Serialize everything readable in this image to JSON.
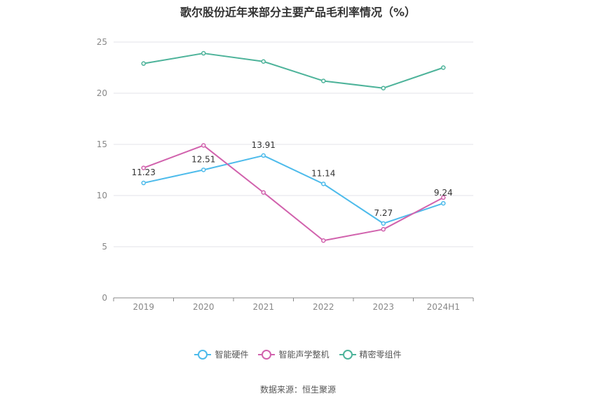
{
  "title": "歌尔股份近年来部分主要产品毛利率情况（%）",
  "source": "数据来源：恒生聚源",
  "chart_data": {
    "type": "line",
    "categories": [
      "2019",
      "2020",
      "2021",
      "2022",
      "2023",
      "2024H1"
    ],
    "ylim": [
      0,
      25
    ],
    "yticks": [
      0,
      5,
      10,
      15,
      20,
      25
    ],
    "grid": true,
    "legend_position": "bottom",
    "series": [
      {
        "name": "智能硬件",
        "color": "#4dbbeb",
        "values": [
          11.23,
          12.51,
          13.91,
          11.14,
          7.27,
          9.24
        ],
        "labels": [
          "11.23",
          "12.51",
          "13.91",
          "11.14",
          "7.27",
          "9.24"
        ]
      },
      {
        "name": "智能声学整机",
        "color": "#d162ad",
        "values": [
          12.7,
          14.9,
          10.3,
          5.6,
          6.7,
          9.8
        ]
      },
      {
        "name": "精密零组件",
        "color": "#4db39a",
        "values": [
          22.9,
          23.9,
          23.1,
          21.2,
          20.5,
          22.5
        ]
      }
    ]
  }
}
